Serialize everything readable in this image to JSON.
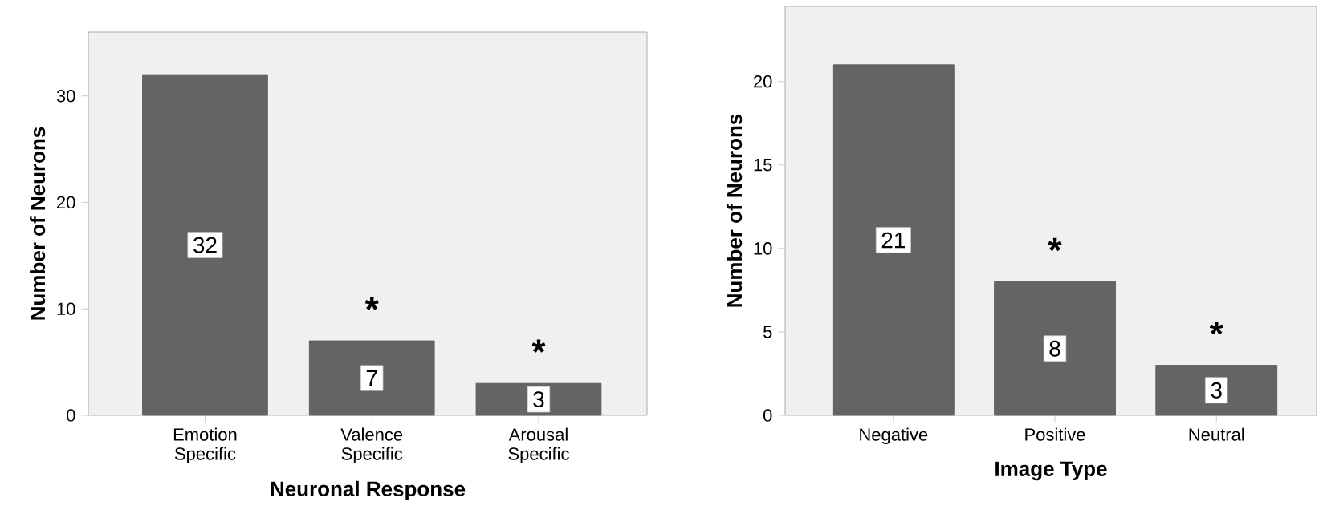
{
  "chart_data": [
    {
      "type": "bar",
      "xlabel": "Neuronal Response",
      "ylabel": "Number of Neurons",
      "categories": [
        "Emotion Specific",
        "Valence Specific",
        "Arousal Specific"
      ],
      "values": [
        32,
        7,
        3
      ],
      "color": "#646464",
      "data_labels": true,
      "ylim": [
        0,
        36
      ],
      "yticks": [
        0,
        10,
        20,
        30
      ],
      "annotations": [
        "*",
        "*"
      ]
    },
    {
      "type": "bar",
      "xlabel": "Image Type",
      "ylabel": "Number of Neurons",
      "categories": [
        "Negative",
        "Positive",
        "Neutral"
      ],
      "values": [
        21,
        8,
        3
      ],
      "color": "#646464",
      "data_labels": true,
      "ylim": [
        0,
        24.5
      ],
      "yticks": [
        0,
        5,
        10,
        15,
        20
      ],
      "annotations": [
        "*",
        "*"
      ]
    }
  ]
}
